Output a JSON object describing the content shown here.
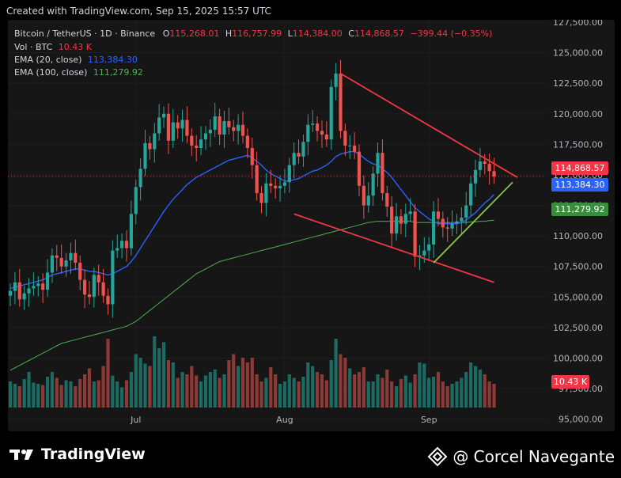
{
  "header": {
    "created": "Created with TradingView.com, Sep 15, 2025 15:57 UTC"
  },
  "legend": {
    "symbol": "Bitcoin / TetherUS · 1D · Binance",
    "o_label": "O",
    "o": "115,268.01",
    "h_label": "H",
    "h": "116,757.99",
    "l_label": "L",
    "l": "114,384.00",
    "c_label": "C",
    "c": "114,868.57",
    "change": "−399.44 (−0.35%)",
    "vol_label": "Vol · BTC",
    "vol": "10.43 K",
    "ema20_label": "EMA (20, close)",
    "ema20": "113,384.30",
    "ema100_label": "EMA (100, close)",
    "ema100": "111,279.92"
  },
  "price_tags": {
    "last": "114,868.57",
    "ema20": "113,384.30",
    "ema100": "111,279.92",
    "volume": "10.43 K"
  },
  "colors": {
    "up": "#26a69a",
    "down": "#ef5350",
    "ema20": "#2962ff",
    "ema100": "#4caf50",
    "trend_red": "#f23645",
    "trend_green": "#8bc34a"
  },
  "footer": {
    "brand": "TradingView",
    "author": "@ Corcel Navegante"
  },
  "chart_data": {
    "type": "candlestick",
    "title": "Bitcoin / TetherUS · 1D · Binance",
    "y_axis_ticks": [
      "127,500.00",
      "125,000.00",
      "122,500.00",
      "120,000.00",
      "117,500.00",
      "115,000.00",
      "112,500.00",
      "110,000.00",
      "107,500.00",
      "105,000.00",
      "102,500.00",
      "100,000.00",
      "97,500.00",
      "95,000.00"
    ],
    "ylim": [
      94000,
      127700
    ],
    "x_axis_labels": [
      "Jul",
      "Aug",
      "Sep"
    ],
    "closes": [
      105500,
      106200,
      104800,
      105300,
      105700,
      105900,
      106100,
      105600,
      107000,
      108400,
      108200,
      107500,
      108000,
      108600,
      107800,
      106400,
      105200,
      105000,
      106800,
      106200,
      105100,
      104400,
      108800,
      109000,
      109600,
      109000,
      111800,
      114000,
      115500,
      117600,
      117100,
      118400,
      119700,
      120000,
      117800,
      119300,
      118800,
      119500,
      118200,
      117400,
      117200,
      117900,
      118400,
      118700,
      119800,
      118300,
      119400,
      118900,
      118600,
      119100,
      118200,
      117200,
      115800,
      113500,
      112700,
      114300,
      114100,
      113900,
      114100,
      114400,
      115800,
      116800,
      116500,
      117700,
      119100,
      119200,
      118600,
      118300,
      117900,
      122200,
      123300,
      118600,
      117400,
      117400,
      116900,
      114100,
      112500,
      113300,
      115100,
      116800,
      113500,
      112400,
      110200,
      111600,
      111000,
      111800,
      112000,
      108300,
      108400,
      108800,
      109300,
      112000,
      111400,
      110700,
      110600,
      111000,
      111200,
      111500,
      112500,
      114300,
      115400,
      116100,
      115900,
      115300,
      114868
    ],
    "volumes": [
      22,
      20,
      18,
      24,
      30,
      21,
      20,
      19,
      26,
      30,
      25,
      19,
      23,
      22,
      18,
      24,
      28,
      33,
      22,
      23,
      35,
      58,
      27,
      22,
      17,
      23,
      30,
      45,
      42,
      37,
      35,
      60,
      50,
      55,
      40,
      38,
      25,
      30,
      28,
      35,
      27,
      22,
      27,
      30,
      32,
      25,
      28,
      40,
      45,
      35,
      42,
      38,
      42,
      28,
      22,
      25,
      34,
      28,
      20,
      22,
      28,
      25,
      22,
      26,
      38,
      35,
      30,
      28,
      23,
      40,
      58,
      45,
      42,
      33,
      28,
      30,
      34,
      22,
      22,
      28,
      25,
      32,
      22,
      18,
      24,
      27,
      21,
      28,
      38,
      37,
      25,
      26,
      30,
      22,
      18,
      20,
      22,
      25,
      30,
      38,
      35,
      32,
      28,
      22,
      20
    ],
    "ema20": [
      105700,
      105800,
      105900,
      106000,
      106100,
      106200,
      106300,
      106400,
      106600,
      106800,
      106900,
      107000,
      107100,
      107200,
      107300,
      107300,
      107200,
      107100,
      107100,
      107000,
      106900,
      106800,
      106900,
      107100,
      107300,
      107500,
      107900,
      108400,
      109000,
      109600,
      110200,
      110800,
      111400,
      112000,
      112500,
      113000,
      113400,
      113800,
      114200,
      114500,
      114800,
      115000,
      115200,
      115400,
      115600,
      115800,
      116000,
      116200,
      116300,
      116400,
      116500,
      116600,
      116400,
      116100,
      115800,
      115400,
      115100,
      114900,
      114700,
      114500,
      114500,
      114600,
      114700,
      114900,
      115100,
      115300,
      115400,
      115600,
      115800,
      116100,
      116500,
      116700,
      116800,
      116900,
      116900,
      116700,
      116400,
      116100,
      115900,
      115800,
      115500,
      115200,
      114800,
      114300,
      113800,
      113300,
      112800,
      112300,
      112000,
      111700,
      111400,
      111200,
      111000,
      111000,
      111000,
      111000,
      111000,
      111100,
      111300,
      111600,
      111900,
      112300,
      112700,
      113000,
      113384
    ],
    "ema100": [
      99000,
      99200,
      99400,
      99600,
      99800,
      100000,
      100200,
      100400,
      100600,
      100800,
      101000,
      101200,
      101300,
      101400,
      101500,
      101600,
      101700,
      101800,
      101900,
      102000,
      102100,
      102200,
      102300,
      102400,
      102500,
      102600,
      102800,
      103000,
      103300,
      103600,
      103900,
      104200,
      104500,
      104800,
      105100,
      105400,
      105700,
      106000,
      106300,
      106600,
      106900,
      107100,
      107300,
      107500,
      107700,
      107900,
      108000,
      108100,
      108200,
      108300,
      108400,
      108500,
      108600,
      108700,
      108800,
      108900,
      109000,
      109100,
      109200,
      109300,
      109400,
      109500,
      109600,
      109700,
      109800,
      109900,
      110000,
      110100,
      110200,
      110300,
      110400,
      110500,
      110600,
      110700,
      110800,
      110900,
      111000,
      111100,
      111150,
      111200,
      111200,
      111200,
      111200,
      111200,
      111200,
      111200,
      111200,
      111100,
      111100,
      111100,
      111100,
      111100,
      111100,
      111100,
      111100,
      111100,
      111100,
      111100,
      111100,
      111150,
      111150,
      111200,
      111200,
      111250,
      111280
    ]
  }
}
